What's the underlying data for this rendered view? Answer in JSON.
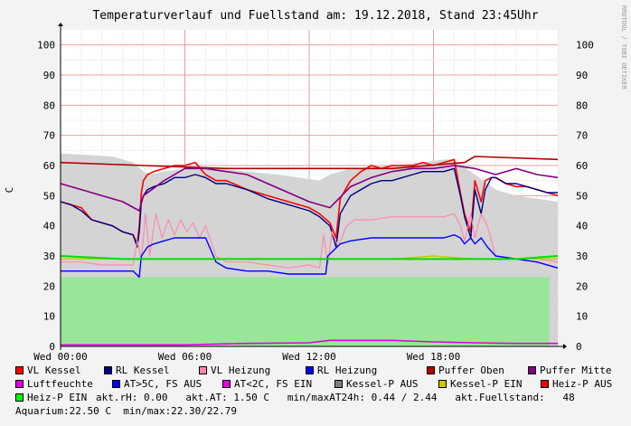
{
  "title": "Temperaturverlauf und Fuellstand am: 19.12.2018, Stand 23:45Uhr",
  "watermark": "RRDTOOL / TOBI OETIKER",
  "chart_data": {
    "type": "line",
    "ylabel": "C",
    "ylim": [
      0,
      105
    ],
    "yticks": [
      0,
      10,
      20,
      30,
      40,
      50,
      60,
      70,
      80,
      90,
      100
    ],
    "xlim": [
      0,
      24
    ],
    "xticks": [
      {
        "h": 0,
        "label": "Wed 00:00"
      },
      {
        "h": 6,
        "label": "Wed 06:00"
      },
      {
        "h": 12,
        "label": "Wed 12:00"
      },
      {
        "h": 18,
        "label": "Wed 18:00"
      }
    ],
    "grid": true,
    "areas": [
      {
        "name": "Kessel-P AUS",
        "color": "#d4d4d4",
        "x": [
          0,
          2.5,
          3.5,
          4.0,
          4.3,
          5.0,
          6.0,
          7.5,
          9.0,
          10.5,
          12.5,
          13.0,
          14.0,
          16.0,
          17.5,
          18.5,
          19.0,
          20.0,
          21.0,
          22.0,
          23.0,
          24.0
        ],
        "y": [
          64,
          63,
          61,
          58,
          57,
          58,
          59,
          59,
          58,
          57,
          55,
          57,
          59,
          60,
          61,
          62,
          62,
          57,
          52,
          50,
          49,
          48
        ]
      },
      {
        "name": "Heiz-P EIN",
        "color": "#99e699",
        "x": [
          0,
          23.6
        ],
        "y": [
          23,
          23
        ]
      }
    ],
    "series": [
      {
        "name": "VL Kessel",
        "color": "#ff0000",
        "width": 1.6,
        "x": [
          0,
          0.5,
          1.0,
          1.5,
          2.0,
          2.5,
          3.0,
          3.5,
          3.7,
          3.8,
          3.9,
          4.0,
          4.2,
          4.5,
          5.0,
          5.5,
          6.0,
          6.5,
          7.0,
          7.5,
          8.0,
          9.0,
          10.0,
          11.0,
          12.0,
          12.5,
          13.0,
          13.3,
          13.5,
          14.0,
          14.5,
          15.0,
          15.5,
          16.0,
          16.5,
          17.0,
          17.5,
          18.0,
          18.5,
          19.0,
          19.3,
          19.5,
          19.8,
          20.0,
          20.3,
          20.5,
          20.8,
          21.0,
          21.5,
          22.0,
          22.5,
          23.0,
          23.5,
          24.0
        ],
        "y": [
          48,
          47,
          46,
          42,
          41,
          40,
          38,
          37,
          34,
          40,
          51,
          55,
          57,
          58,
          59,
          60,
          60,
          61,
          57,
          55,
          55,
          52,
          50,
          48,
          46,
          44,
          41,
          36,
          49,
          55,
          58,
          60,
          59,
          60,
          60,
          60,
          61,
          60,
          61,
          62,
          51,
          44,
          38,
          55,
          48,
          55,
          56,
          56,
          54,
          53,
          53,
          52,
          51,
          50
        ]
      },
      {
        "name": "RL Kessel",
        "color": "#000080",
        "width": 1.4,
        "x": [
          0,
          0.5,
          1.0,
          1.5,
          2.0,
          2.5,
          3.0,
          3.5,
          3.7,
          3.8,
          3.9,
          4.0,
          4.2,
          4.5,
          5.0,
          5.5,
          6.0,
          6.5,
          7.0,
          7.5,
          8.0,
          9.0,
          10.0,
          11.0,
          12.0,
          12.5,
          13.0,
          13.3,
          13.5,
          14.0,
          14.5,
          15.0,
          15.5,
          16.0,
          16.5,
          17.0,
          17.5,
          18.0,
          18.5,
          19.0,
          19.3,
          19.5,
          19.8,
          20.0,
          20.3,
          20.5,
          20.8,
          21.0,
          21.5,
          22.0,
          22.5,
          23.0,
          23.5,
          24.0
        ],
        "y": [
          48,
          47,
          45,
          42,
          41,
          40,
          38,
          37,
          33,
          38,
          48,
          50,
          52,
          53,
          54,
          56,
          56,
          57,
          56,
          54,
          54,
          52,
          49,
          47,
          45,
          43,
          40,
          33,
          44,
          50,
          52,
          54,
          55,
          55,
          56,
          57,
          58,
          58,
          58,
          59,
          50,
          43,
          36,
          52,
          44,
          52,
          56,
          56,
          54,
          54,
          53,
          52,
          51,
          51
        ]
      },
      {
        "name": "VL Heizung",
        "color": "#ff8ab0",
        "width": 1.2,
        "x": [
          0,
          1.0,
          2.0,
          3.0,
          3.5,
          3.7,
          3.9,
          4.1,
          4.3,
          4.6,
          4.9,
          5.2,
          5.5,
          5.8,
          6.1,
          6.4,
          6.7,
          7.0,
          7.5,
          8.0,
          9.0,
          10.0,
          11.0,
          12.0,
          12.5,
          12.7,
          12.9,
          13.1,
          13.4,
          13.8,
          14.2,
          14.6,
          15.0,
          16.0,
          17.0,
          18.0,
          18.5,
          19.0,
          19.3,
          19.5,
          19.8,
          20.0,
          20.3,
          20.6,
          21.0,
          22.0,
          23.0,
          24.0
        ],
        "y": [
          28,
          28,
          27,
          27,
          27,
          35,
          29,
          44,
          30,
          44,
          36,
          42,
          37,
          42,
          38,
          41,
          36,
          40,
          30,
          28,
          28,
          27,
          26,
          27,
          26,
          37,
          27,
          38,
          33,
          40,
          42,
          42,
          42,
          43,
          43,
          43,
          43,
          44,
          40,
          35,
          44,
          36,
          44,
          40,
          30,
          29,
          29,
          28
        ]
      },
      {
        "name": "RL Heizung",
        "color": "#0000ff",
        "width": 1.4,
        "x": [
          0,
          1.0,
          2.0,
          3.0,
          3.5,
          3.8,
          3.9,
          4.2,
          4.5,
          5.0,
          5.5,
          6.0,
          6.5,
          7.0,
          7.5,
          8.0,
          9.0,
          10.0,
          11.0,
          12.0,
          12.5,
          12.8,
          12.9,
          13.2,
          13.5,
          14.0,
          15.0,
          16.0,
          17.0,
          18.0,
          18.5,
          19.0,
          19.3,
          19.5,
          19.8,
          20.0,
          20.3,
          20.6,
          21.0,
          22.0,
          23.0,
          24.0
        ],
        "y": [
          25,
          25,
          25,
          25,
          25,
          23,
          30,
          33,
          34,
          35,
          36,
          36,
          36,
          36,
          28,
          26,
          25,
          25,
          24,
          24,
          24,
          24,
          30,
          32,
          34,
          35,
          36,
          36,
          36,
          36,
          36,
          37,
          36,
          34,
          36,
          34,
          36,
          33,
          30,
          29,
          28,
          26
        ]
      },
      {
        "name": "Puffer Oben",
        "color": "#b00000",
        "width": 1.6,
        "x": [
          0,
          4,
          8,
          12,
          16,
          19.5,
          20,
          24
        ],
        "y": [
          61,
          60,
          59,
          59,
          59,
          61,
          63,
          62
        ]
      },
      {
        "name": "Puffer Mitte",
        "color": "#800080",
        "width": 1.6,
        "x": [
          0,
          1,
          2,
          3,
          3.8,
          4,
          5,
          6,
          7,
          8,
          9,
          10,
          11,
          12,
          13,
          14,
          15,
          16,
          17,
          18,
          19,
          20,
          20.5,
          21,
          22,
          23,
          24
        ],
        "y": [
          54,
          52,
          50,
          48,
          45,
          50,
          55,
          59,
          59,
          58,
          57,
          54,
          51,
          48,
          46,
          53,
          56,
          58,
          59,
          59,
          60,
          59,
          58,
          57,
          59,
          57,
          56
        ]
      },
      {
        "name": "Luftfeuchte",
        "color": "#e000e0",
        "width": 1.6,
        "x": [
          0,
          3,
          6,
          9,
          12,
          13,
          14,
          15,
          16,
          18,
          20,
          22,
          24
        ],
        "y": [
          0.5,
          0.5,
          0.5,
          1.0,
          1.2,
          2.0,
          2.0,
          2.0,
          2.0,
          1.5,
          1.2,
          1.0,
          1.0
        ]
      },
      {
        "name": "Kessel-P EIN",
        "color": "#c8c800",
        "width": 1.4,
        "x": [
          0,
          3,
          4,
          6,
          9,
          12,
          14,
          16,
          18,
          20,
          22,
          24
        ],
        "y": [
          29,
          29,
          29,
          29,
          29,
          29,
          29,
          29,
          30,
          29,
          29,
          29
        ]
      },
      {
        "name": "Heiz-P EIN",
        "color": "#00dd00",
        "width": 2.0,
        "x": [
          0,
          3,
          4,
          6,
          7,
          9,
          12,
          14,
          16,
          18,
          20,
          22,
          24
        ],
        "y": [
          30,
          29,
          29,
          29,
          29,
          29,
          29,
          29,
          29,
          29,
          29,
          29,
          30
        ]
      }
    ]
  },
  "legend": [
    [
      {
        "label": "VL Kessel",
        "color": "#ff0000"
      },
      {
        "label": "RL Kessel",
        "color": "#000080"
      },
      {
        "label": "VL Heizung",
        "color": "#ff8ab0"
      },
      {
        "label": "RL Heizung",
        "color": "#0000ff"
      },
      {
        "label": "Puffer Oben",
        "color": "#b00000"
      },
      {
        "label": "Puffer Mitte",
        "color": "#800080"
      }
    ],
    [
      {
        "label": "Luftfeuchte",
        "color": "#e000e0"
      },
      {
        "label": "AT>5C, FS AUS",
        "color": "#0000ff"
      },
      {
        "label": "AT<2C, FS EIN",
        "color": "#e000e0"
      },
      {
        "label": "Kessel-P AUS",
        "color": "#808080"
      },
      {
        "label": "Kessel-P EIN",
        "color": "#c8c800"
      },
      {
        "label": "Heiz-P AUS",
        "color": "#ff0000"
      }
    ]
  ],
  "legend_row3": {
    "item": {
      "label": "Heiz-P EIN",
      "color": "#00ff00"
    },
    "stats": "akt.rH: 0.00   akt.AT: 1.50 C   min/maxAT24h: 0.44 / 2.44   akt.Fuellstand:   48"
  },
  "footer": "Aquarium:22.50 C  min/max:22.30/22.79"
}
